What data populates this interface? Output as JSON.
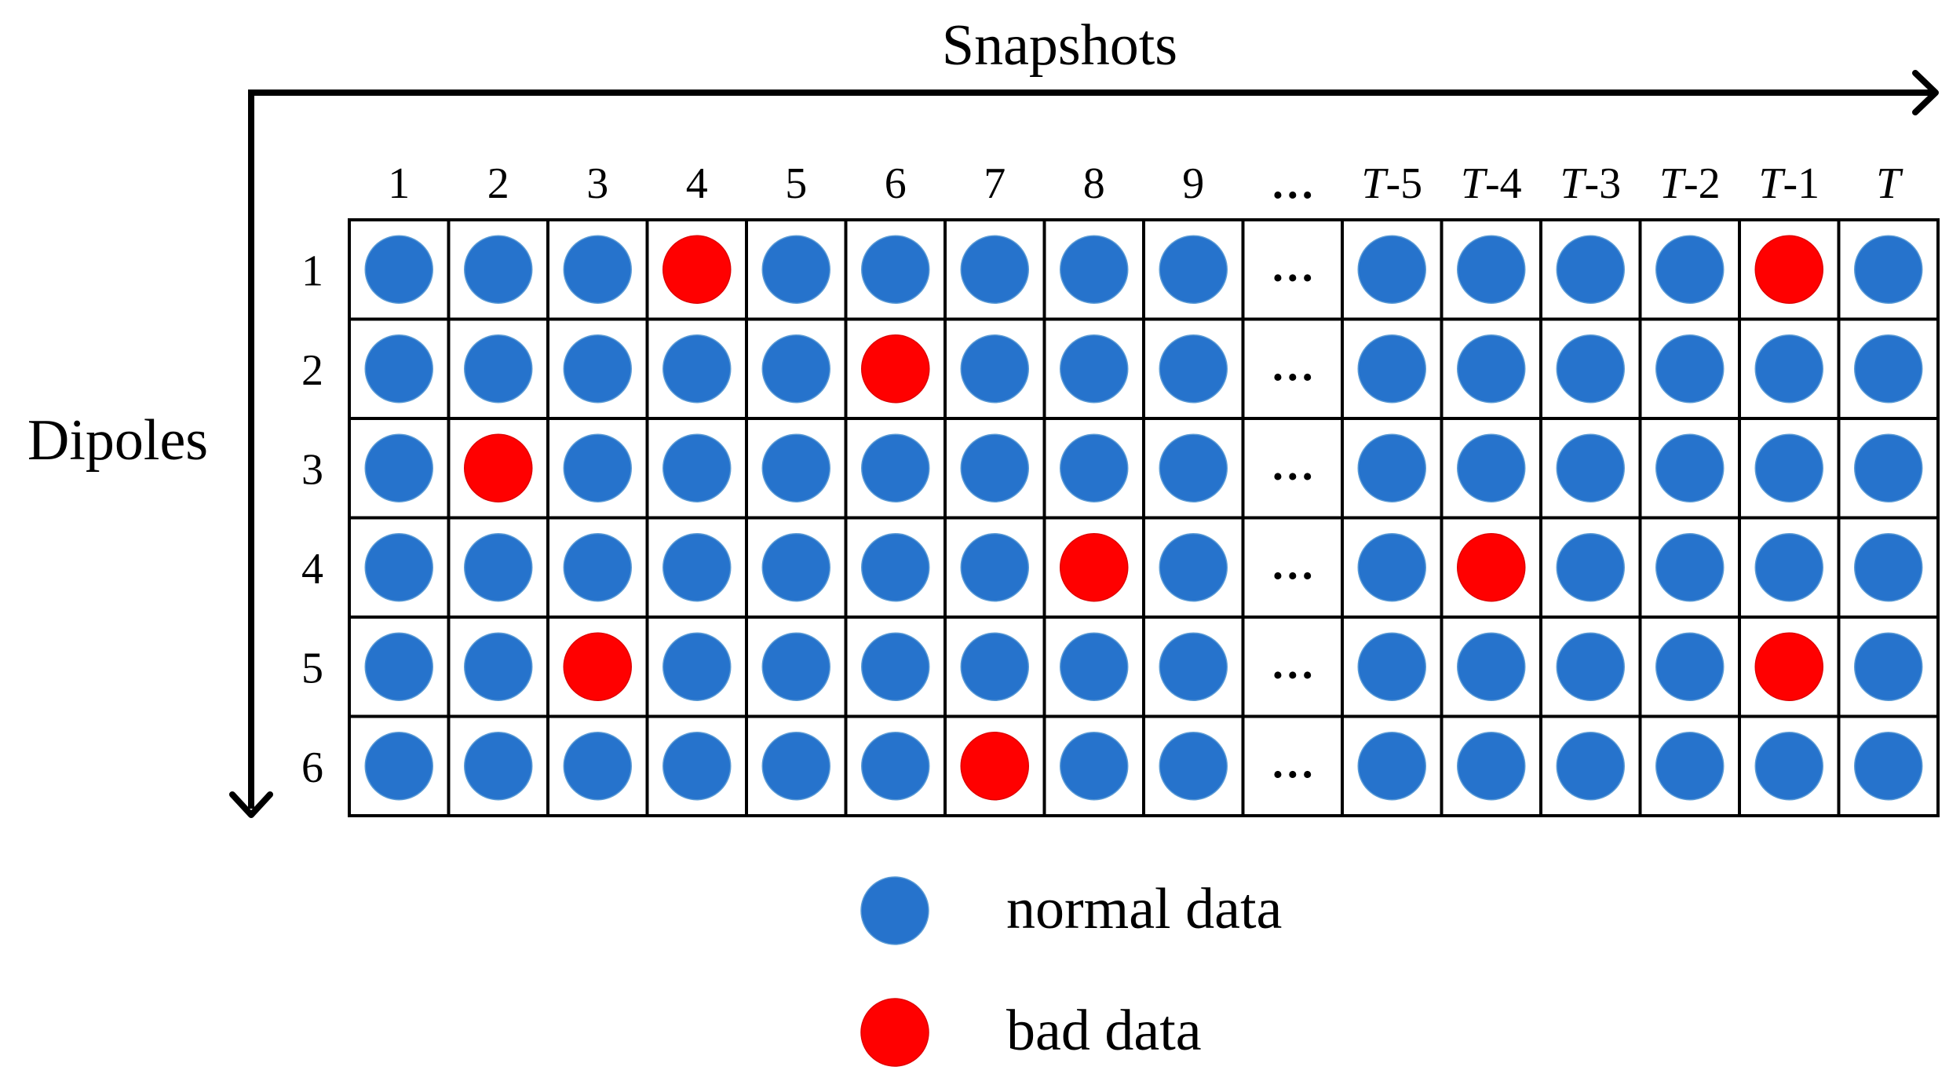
{
  "title_x": "Snapshots",
  "title_y": "Dipoles",
  "ellipsis": "…",
  "columns": [
    {
      "label": "1",
      "italic_T": false,
      "suffix": "1"
    },
    {
      "label": "2",
      "italic_T": false,
      "suffix": "2"
    },
    {
      "label": "3",
      "italic_T": false,
      "suffix": "3"
    },
    {
      "label": "4",
      "italic_T": false,
      "suffix": "4"
    },
    {
      "label": "5",
      "italic_T": false,
      "suffix": "5"
    },
    {
      "label": "6",
      "italic_T": false,
      "suffix": "6"
    },
    {
      "label": "7",
      "italic_T": false,
      "suffix": "7"
    },
    {
      "label": "8",
      "italic_T": false,
      "suffix": "8"
    },
    {
      "label": "9",
      "italic_T": false,
      "suffix": "9"
    },
    {
      "label": "…",
      "italic_T": false,
      "suffix": "…",
      "ellipsis": true
    },
    {
      "label": "T-5",
      "italic_T": true,
      "suffix": "-5"
    },
    {
      "label": "T-4",
      "italic_T": true,
      "suffix": "-4"
    },
    {
      "label": "T-3",
      "italic_T": true,
      "suffix": "-3"
    },
    {
      "label": "T-2",
      "italic_T": true,
      "suffix": "-2"
    },
    {
      "label": "T-1",
      "italic_T": true,
      "suffix": "-1"
    },
    {
      "label": "T",
      "italic_T": true,
      "suffix": ""
    }
  ],
  "rows": [
    "1",
    "2",
    "3",
    "4",
    "5",
    "6"
  ],
  "grid": [
    [
      "n",
      "n",
      "n",
      "b",
      "n",
      "n",
      "n",
      "n",
      "n",
      "e",
      "n",
      "n",
      "n",
      "n",
      "b",
      "n"
    ],
    [
      "n",
      "n",
      "n",
      "n",
      "n",
      "b",
      "n",
      "n",
      "n",
      "e",
      "n",
      "n",
      "n",
      "n",
      "n",
      "n"
    ],
    [
      "n",
      "b",
      "n",
      "n",
      "n",
      "n",
      "n",
      "n",
      "n",
      "e",
      "n",
      "n",
      "n",
      "n",
      "n",
      "n"
    ],
    [
      "n",
      "n",
      "n",
      "n",
      "n",
      "n",
      "n",
      "b",
      "n",
      "e",
      "n",
      "b",
      "n",
      "n",
      "n",
      "n"
    ],
    [
      "n",
      "n",
      "b",
      "n",
      "n",
      "n",
      "n",
      "n",
      "n",
      "e",
      "n",
      "n",
      "n",
      "n",
      "b",
      "n"
    ],
    [
      "n",
      "n",
      "n",
      "n",
      "n",
      "n",
      "b",
      "n",
      "n",
      "e",
      "n",
      "n",
      "n",
      "n",
      "n",
      "n"
    ]
  ],
  "legend": [
    {
      "key": "n",
      "label": "normal data",
      "color": "#2673CC"
    },
    {
      "key": "b",
      "label": "bad data",
      "color": "#FF0000"
    }
  ],
  "colors": {
    "normal": "#2673CC",
    "bad": "#FF0000",
    "stroke": "#000000",
    "circle_edge": "#5B9BD5"
  }
}
